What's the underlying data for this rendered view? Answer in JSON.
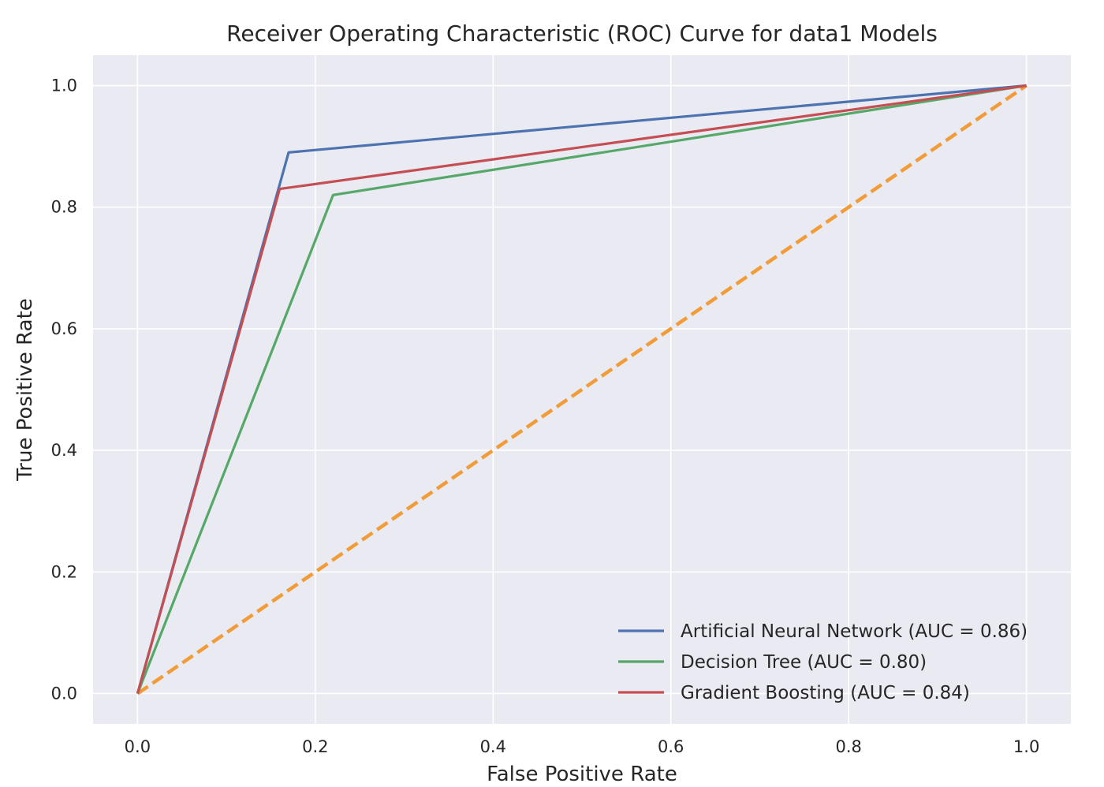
{
  "chart_data": {
    "type": "line",
    "title": "Receiver Operating Characteristic (ROC) Curve for data1 Models",
    "xlabel": "False Positive Rate",
    "ylabel": "True Positive Rate",
    "xlim": [
      -0.05,
      1.05
    ],
    "ylim": [
      -0.05,
      1.05
    ],
    "xticks": [
      0.0,
      0.2,
      0.4,
      0.6,
      0.8,
      1.0
    ],
    "yticks": [
      0.0,
      0.2,
      0.4,
      0.6,
      0.8,
      1.0
    ],
    "xtick_labels": [
      "0.0",
      "0.2",
      "0.4",
      "0.6",
      "0.8",
      "1.0"
    ],
    "ytick_labels": [
      "0.0",
      "0.2",
      "0.4",
      "0.6",
      "0.8",
      "1.0"
    ],
    "grid": true,
    "legend_position": "lower-right",
    "background_color": "#eaeaf2",
    "grid_color": "#ffffff",
    "series": [
      {
        "name": "Artificial Neural Network (AUC = 0.86)",
        "color": "#4c72b0",
        "style": "solid",
        "x": [
          0.0,
          0.17,
          1.0
        ],
        "y": [
          0.0,
          0.89,
          1.0
        ]
      },
      {
        "name": "Decision Tree (AUC = 0.80)",
        "color": "#55a868",
        "style": "solid",
        "x": [
          0.0,
          0.22,
          1.0
        ],
        "y": [
          0.0,
          0.82,
          1.0
        ]
      },
      {
        "name": "Gradient Boosting (AUC = 0.84)",
        "color": "#c44e52",
        "style": "solid",
        "x": [
          0.0,
          0.16,
          1.0
        ],
        "y": [
          0.0,
          0.83,
          1.0
        ]
      },
      {
        "name": "",
        "color": "#f19c38",
        "style": "dashed",
        "x": [
          0.0,
          1.0
        ],
        "y": [
          0.0,
          1.0
        ]
      }
    ]
  }
}
